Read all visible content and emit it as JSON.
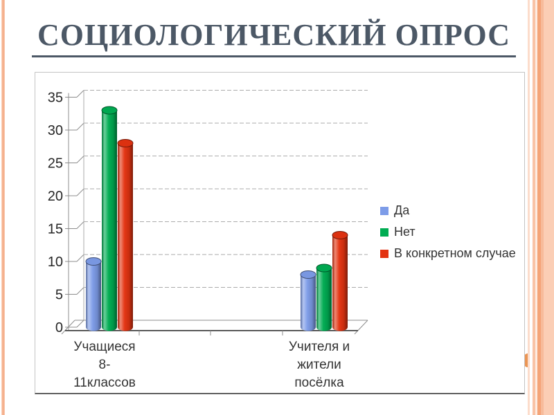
{
  "slide": {
    "title": "СОЦИОЛОГИЧЕСКИЙ ОПРОС",
    "title_color": "#4c5866",
    "accent_border_color": "#f4a478"
  },
  "chart_data": {
    "type": "bar",
    "bar_shape": "cylinder",
    "view": "3d",
    "title": "",
    "xlabel": "",
    "ylabel": "",
    "categories": [
      "Учащиеся 8-11классов",
      "Учителя и жители посёлка"
    ],
    "category_label_lines": [
      [
        "Учащиеся",
        "8-",
        "11классов"
      ],
      [
        "Учителя и",
        "жители",
        "посёлка"
      ]
    ],
    "series": [
      {
        "name": "Да",
        "color": "#7D9CE8",
        "values": [
          10,
          8
        ]
      },
      {
        "name": "Нет",
        "color": "#00AC52",
        "values": [
          33,
          9
        ]
      },
      {
        "name": "В конкретном случае",
        "color": "#E33311",
        "values": [
          28,
          14
        ]
      }
    ],
    "ylim": [
      0,
      35
    ],
    "ytick_step": 5,
    "yticks": [
      0,
      5,
      10,
      15,
      20,
      25,
      30,
      35
    ],
    "grid": true,
    "gridline_style": "dashed",
    "legend_position": "right",
    "category_slots": 4,
    "used_slots": [
      0,
      3
    ]
  }
}
